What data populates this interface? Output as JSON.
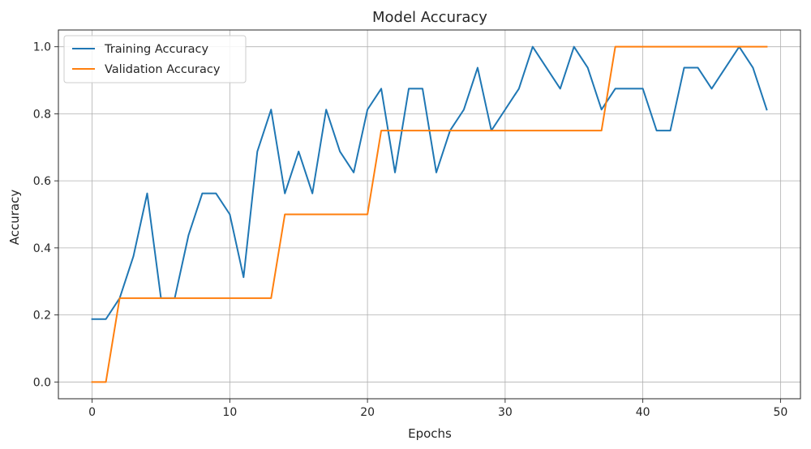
{
  "chart_data": {
    "type": "line",
    "title": "Model Accuracy",
    "xlabel": "Epochs",
    "ylabel": "Accuracy",
    "xlim": [
      -2.45,
      51.45
    ],
    "ylim": [
      -0.05,
      1.05
    ],
    "xticks": [
      0,
      10,
      20,
      30,
      40,
      50
    ],
    "yticks": [
      0.0,
      0.2,
      0.4,
      0.6,
      0.8,
      1.0
    ],
    "xtick_labels": [
      "0",
      "10",
      "20",
      "30",
      "40",
      "50"
    ],
    "ytick_labels": [
      "0.0",
      "0.2",
      "0.4",
      "0.6",
      "0.8",
      "1.0"
    ],
    "grid": true,
    "legend_position": "top-left",
    "x": [
      0,
      1,
      2,
      3,
      4,
      5,
      6,
      7,
      8,
      9,
      10,
      11,
      12,
      13,
      14,
      15,
      16,
      17,
      18,
      19,
      20,
      21,
      22,
      23,
      24,
      25,
      26,
      27,
      28,
      29,
      30,
      31,
      32,
      33,
      34,
      35,
      36,
      37,
      38,
      39,
      40,
      41,
      42,
      43,
      44,
      45,
      46,
      47,
      48,
      49
    ],
    "series": [
      {
        "name": "Training Accuracy",
        "color": "#1f77b4",
        "values": [
          0.1875,
          0.1875,
          0.25,
          0.375,
          0.5625,
          0.25,
          0.25,
          0.4375,
          0.5625,
          0.5625,
          0.5,
          0.3125,
          0.6875,
          0.8125,
          0.5625,
          0.6875,
          0.5625,
          0.8125,
          0.6875,
          0.625,
          0.8125,
          0.875,
          0.625,
          0.875,
          0.875,
          0.625,
          0.75,
          0.8125,
          0.9375,
          0.75,
          0.8125,
          0.875,
          1.0,
          0.9375,
          0.875,
          1.0,
          0.9375,
          0.8125,
          0.875,
          0.875,
          0.875,
          0.75,
          0.75,
          0.9375,
          0.9375,
          0.875,
          0.9375,
          1.0,
          0.9375,
          0.8125
        ]
      },
      {
        "name": "Validation Accuracy",
        "color": "#ff7f0e",
        "values": [
          0.0,
          0.0,
          0.25,
          0.25,
          0.25,
          0.25,
          0.25,
          0.25,
          0.25,
          0.25,
          0.25,
          0.25,
          0.25,
          0.25,
          0.5,
          0.5,
          0.5,
          0.5,
          0.5,
          0.5,
          0.5,
          0.75,
          0.75,
          0.75,
          0.75,
          0.75,
          0.75,
          0.75,
          0.75,
          0.75,
          0.75,
          0.75,
          0.75,
          0.75,
          0.75,
          0.75,
          0.75,
          0.75,
          1.0,
          1.0,
          1.0,
          1.0,
          1.0,
          1.0,
          1.0,
          1.0,
          1.0,
          1.0,
          1.0,
          1.0
        ]
      }
    ]
  }
}
